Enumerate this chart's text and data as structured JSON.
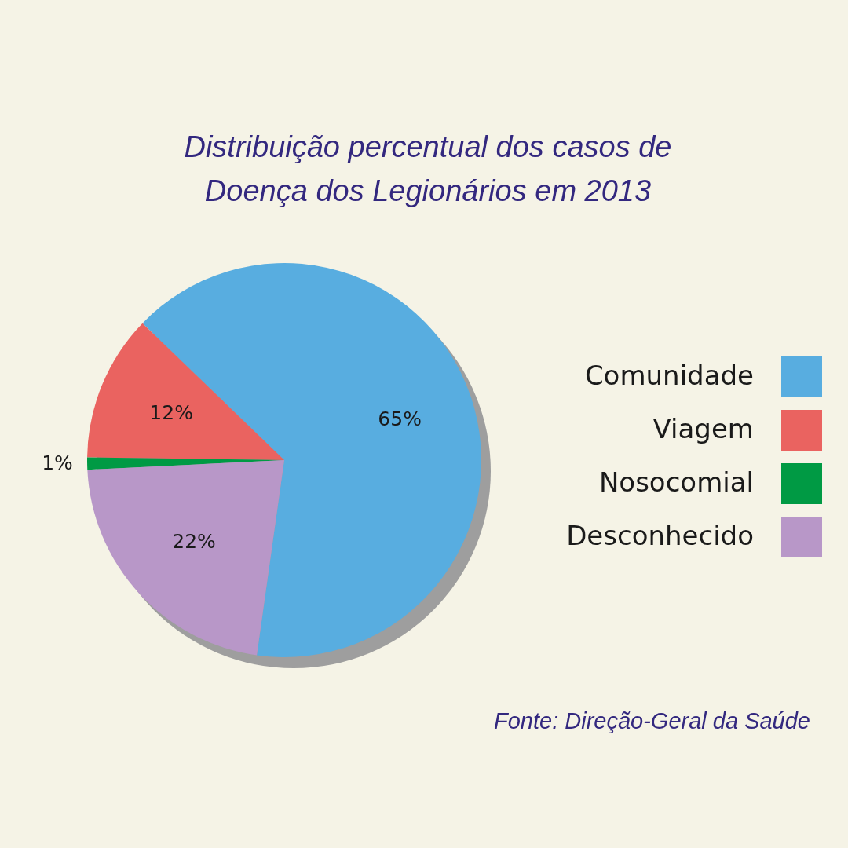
{
  "chart_data": {
    "type": "pie",
    "title": "Distribuição percentual dos casos de\nDoença dos Legionários em 2013",
    "categories": [
      "Comunidade",
      "Viagem",
      "Nosocomial",
      "Desconhecido"
    ],
    "values": [
      65,
      12,
      1,
      22
    ],
    "colors": [
      "#58ade0",
      "#ea6360",
      "#009a44",
      "#b897c8"
    ],
    "value_labels": [
      "65%",
      "12%",
      "1%",
      "22%"
    ],
    "legend": "right",
    "annotations": [
      "Fonte: Direção-Geral da Saúde"
    ]
  }
}
